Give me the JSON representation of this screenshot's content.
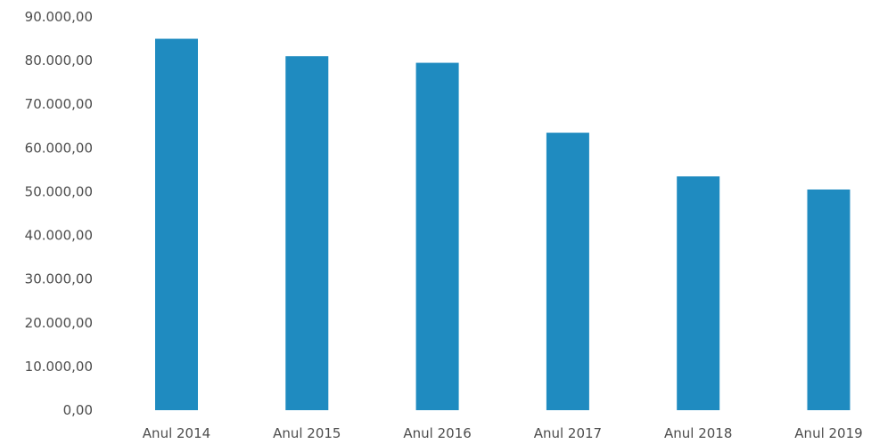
{
  "chart_data": {
    "type": "bar",
    "title": "",
    "xlabel": "",
    "ylabel": "",
    "categories": [
      "Anul 2014",
      "Anul 2015",
      "Anul 2016",
      "Anul 2017",
      "Anul 2018",
      "Anul 2019"
    ],
    "values": [
      85000,
      81000,
      79500,
      63500,
      53500,
      50500
    ],
    "ylim": [
      0,
      90000
    ],
    "yticks": [
      0,
      10000,
      20000,
      30000,
      40000,
      50000,
      60000,
      70000,
      80000,
      90000
    ],
    "ytick_labels": [
      "0,00",
      "10.000,00",
      "20.000,00",
      "30.000,00",
      "40.000,00",
      "50.000,00",
      "60.000,00",
      "70.000,00",
      "80.000,00",
      "90.000,00"
    ],
    "bar_color": "#1f8bc0",
    "grid": false,
    "legend": "none"
  }
}
